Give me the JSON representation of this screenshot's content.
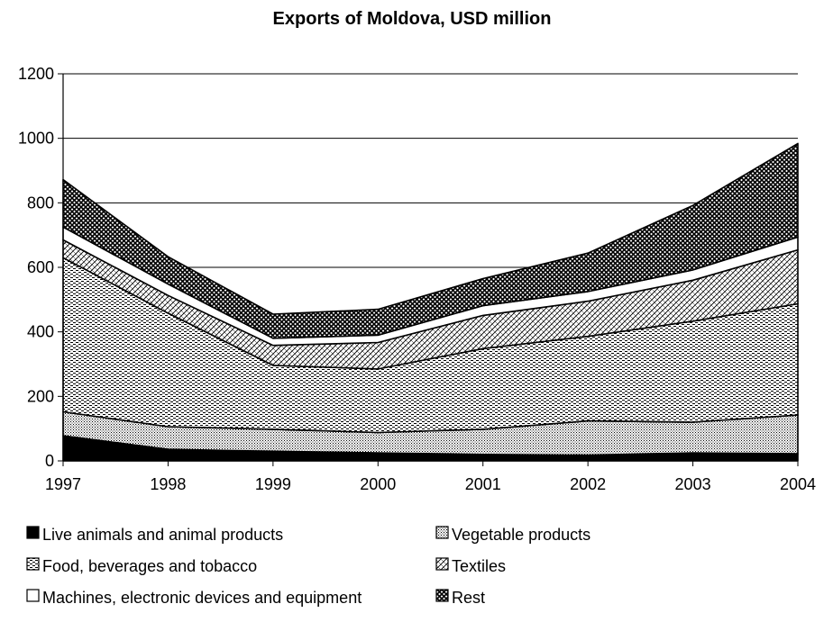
{
  "chart_data": {
    "type": "area",
    "stacked": true,
    "title": "Exports of Moldova, USD million",
    "xlabel": "",
    "ylabel": "",
    "x": [
      "1997",
      "1998",
      "1999",
      "2000",
      "2001",
      "2002",
      "2003",
      "2004"
    ],
    "ylim": [
      0,
      1200
    ],
    "yticks": [
      0,
      200,
      400,
      600,
      800,
      1000,
      1200
    ],
    "grid": "horizontal",
    "legend_placement": "bottom",
    "series": [
      {
        "name": "Live animals and animal products",
        "pattern": "solid-black",
        "values": [
          78,
          36,
          30,
          25,
          20,
          18,
          25,
          22
        ]
      },
      {
        "name": "Vegetable products",
        "pattern": "dense-dots",
        "values": [
          74,
          70,
          68,
          63,
          78,
          106,
          95,
          120
        ]
      },
      {
        "name": "Food, beverages and tobacco",
        "pattern": "horizontal-dashes",
        "values": [
          478,
          352,
          198,
          197,
          250,
          262,
          313,
          345
        ]
      },
      {
        "name": "Textiles",
        "pattern": "diagonal-crosshatch",
        "values": [
          55,
          55,
          62,
          82,
          103,
          109,
          127,
          167
        ]
      },
      {
        "name": "Machines, electronic devices and equipment",
        "pattern": "white",
        "values": [
          40,
          35,
          22,
          23,
          30,
          30,
          32,
          40
        ]
      },
      {
        "name": "Rest",
        "pattern": "heavy-checker",
        "values": [
          147,
          85,
          75,
          80,
          84,
          119,
          200,
          290
        ]
      }
    ]
  }
}
